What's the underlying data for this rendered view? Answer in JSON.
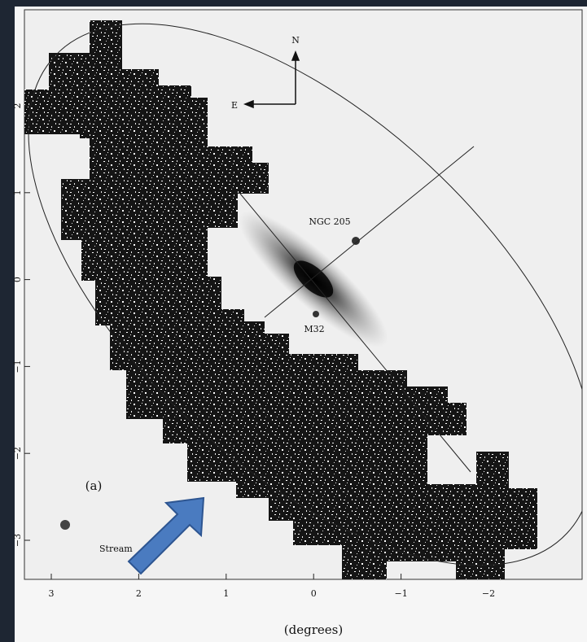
{
  "figure": {
    "x_axis": {
      "ticks": [
        "3",
        "2",
        "1",
        "0",
        "−1",
        "−2"
      ],
      "label": "(degrees)"
    },
    "y_axis": {
      "ticks": [
        "2",
        "1",
        "0",
        "−1",
        "−2",
        "−3"
      ]
    },
    "compass": {
      "north": "N",
      "east": "E"
    },
    "labels": {
      "ngc205": "NGC 205",
      "m32": "M32",
      "panel": "(a)",
      "stream": "Stream"
    }
  }
}
